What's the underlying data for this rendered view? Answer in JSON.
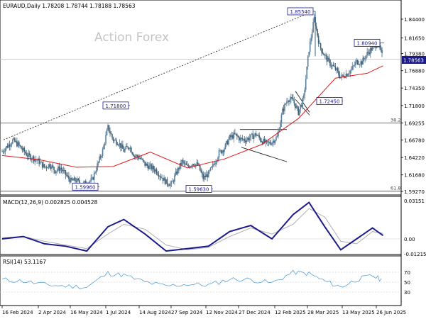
{
  "header": {
    "symbol_line": "EURAUD,Daily  1.78208 1.78744 1.78188 1.78563",
    "watermark": "Action Forex",
    "current_price": "1.78563"
  },
  "colors": {
    "background": "#ffffff",
    "bull_candle": "#5b7f9a",
    "bear_candle": "#3f6077",
    "moving_average": "#e0191b",
    "macd_line": "#1a1a8c",
    "signal_line": "#b0b0b0",
    "rsi_line": "#5aa2d8",
    "annotation": "#1a1a8c",
    "price_tag": "#1a1a8c"
  },
  "chart_data": [
    {
      "type": "candlestick",
      "title": "EURAUD,Daily",
      "series": [
        {
          "name": "EURAUD price (approx. weekly path)",
          "x": [
            "2024-02-16",
            "2024-02-23",
            "2024-03-01",
            "2024-03-08",
            "2024-03-15",
            "2024-03-22",
            "2024-03-29",
            "2024-04-05",
            "2024-04-12",
            "2024-04-19",
            "2024-04-26",
            "2024-05-03",
            "2024-05-10",
            "2024-05-17",
            "2024-05-24",
            "2024-05-31",
            "2024-06-07",
            "2024-06-14",
            "2024-06-21",
            "2024-06-28",
            "2024-07-05",
            "2024-07-12",
            "2024-07-19",
            "2024-07-26",
            "2024-08-02",
            "2024-08-09",
            "2024-08-16",
            "2024-08-23",
            "2024-08-30",
            "2024-09-06",
            "2024-09-13",
            "2024-09-20",
            "2024-09-27",
            "2024-10-04",
            "2024-10-11",
            "2024-10-18",
            "2024-10-25",
            "2024-11-01",
            "2024-11-08",
            "2024-11-15",
            "2024-11-22",
            "2024-11-29",
            "2024-12-06",
            "2024-12-13",
            "2024-12-20",
            "2024-12-27",
            "2025-01-03",
            "2025-01-10",
            "2025-01-17",
            "2025-01-24",
            "2025-01-31",
            "2025-02-07",
            "2025-02-14",
            "2025-02-21",
            "2025-02-28",
            "2025-03-07",
            "2025-03-14",
            "2025-03-21",
            "2025-03-28",
            "2025-04-04",
            "2025-04-11",
            "2025-04-18",
            "2025-04-25",
            "2025-05-02",
            "2025-05-09",
            "2025-05-16",
            "2025-05-23",
            "2025-05-30",
            "2025-06-06",
            "2025-06-13",
            "2025-06-20",
            "2025-06-27",
            "2025-07-04"
          ],
          "values": [
            1.651,
            1.659,
            1.667,
            1.661,
            1.652,
            1.644,
            1.641,
            1.636,
            1.628,
            1.632,
            1.623,
            1.627,
            1.617,
            1.608,
            1.609,
            1.602,
            1.606,
            1.609,
            1.631,
            1.652,
            1.686,
            1.668,
            1.664,
            1.652,
            1.659,
            1.645,
            1.642,
            1.632,
            1.628,
            1.624,
            1.615,
            1.606,
            1.603,
            1.621,
            1.636,
            1.628,
            1.634,
            1.631,
            1.612,
            1.618,
            1.632,
            1.649,
            1.656,
            1.671,
            1.675,
            1.669,
            1.668,
            1.672,
            1.676,
            1.667,
            1.662,
            1.665,
            1.672,
            1.71,
            1.728,
            1.725,
            1.708,
            1.729,
            1.8,
            1.845,
            1.805,
            1.79,
            1.779,
            1.771,
            1.759,
            1.764,
            1.77,
            1.782,
            1.781,
            1.794,
            1.802,
            1.809,
            1.786
          ]
        },
        {
          "name": "Moving average",
          "x": [
            "2024-02-16",
            "2024-04-05",
            "2024-05-24",
            "2024-07-12",
            "2024-08-30",
            "2024-10-18",
            "2024-12-06",
            "2025-01-24",
            "2025-03-14",
            "2025-05-02",
            "2025-06-13",
            "2025-07-04"
          ],
          "values": [
            1.645,
            1.639,
            1.628,
            1.629,
            1.65,
            1.627,
            1.64,
            1.661,
            1.699,
            1.758,
            1.765,
            1.776
          ]
        }
      ],
      "y_ticks": [
        "1.84400",
        "1.81650",
        "1.79380",
        "1.76880",
        "1.74350",
        "1.71800",
        "1.69255",
        "1.66780",
        "1.64220",
        "1.61680",
        "1.59270"
      ],
      "ylim": [
        1.5927,
        1.8589
      ],
      "x_ticks": [
        "16 Feb 2024",
        "2 Apr 2024",
        "16 May 2024",
        "1 Jul 2024",
        "14 Aug 2024",
        "27 Sep 2024",
        "12 Nov 2024",
        "27 Dec 2024",
        "12 Feb 2025",
        "28 Mar 2025",
        "13 May 2025",
        "26 Jun 2025"
      ],
      "annotations": [
        "1.85540",
        "1.80940",
        "1.72450",
        "1.71800",
        "1.59960",
        "1.59630",
        "38.2",
        "61.8"
      ],
      "reference_lines": {
        "fib_38_2": 1.6926,
        "fib_61_8": 1.593,
        "current": 1.7856
      },
      "grid": false
    },
    {
      "type": "line",
      "title": "MACD(12,26,9) 0.002825 0.004528",
      "series": [
        {
          "name": "MACD",
          "x": [
            "2024-02-16",
            "2024-03-15",
            "2024-04-12",
            "2024-05-10",
            "2024-06-07",
            "2024-07-05",
            "2024-07-26",
            "2024-08-23",
            "2024-09-20",
            "2024-10-18",
            "2024-11-15",
            "2024-12-13",
            "2025-01-10",
            "2025-02-07",
            "2025-03-07",
            "2025-03-28",
            "2025-04-18",
            "2025-05-09",
            "2025-05-30",
            "2025-06-20",
            "2025-07-04"
          ],
          "values": [
            0.0,
            0.002,
            -0.004,
            -0.006,
            -0.01,
            0.01,
            0.016,
            0.004,
            -0.01,
            -0.008,
            -0.006,
            0.006,
            0.011,
            0.0,
            0.02,
            0.03,
            0.01,
            -0.009,
            0.0,
            0.009,
            0.0028
          ]
        },
        {
          "name": "Signal",
          "x": [
            "2024-02-16",
            "2024-03-15",
            "2024-04-12",
            "2024-05-10",
            "2024-06-07",
            "2024-07-05",
            "2024-07-26",
            "2024-08-23",
            "2024-09-20",
            "2024-10-18",
            "2024-11-15",
            "2024-12-13",
            "2025-01-10",
            "2025-02-07",
            "2025-03-07",
            "2025-03-28",
            "2025-04-18",
            "2025-05-09",
            "2025-05-30",
            "2025-06-20",
            "2025-07-04"
          ],
          "values": [
            0.001,
            0.002,
            -0.002,
            -0.005,
            -0.008,
            0.004,
            0.012,
            0.008,
            -0.005,
            -0.009,
            -0.007,
            0.002,
            0.009,
            0.004,
            0.012,
            0.025,
            0.018,
            -0.002,
            -0.004,
            0.006,
            0.0045
          ]
        }
      ],
      "y_ticks": [
        "0.03151",
        "0.00",
        "-0.012158"
      ],
      "ylim": [
        -0.0135,
        0.0325
      ],
      "grid": false
    },
    {
      "type": "line",
      "title": "RSI(14) 53.1167",
      "series": [
        {
          "name": "RSI",
          "x": [
            "2024-02-16",
            "2024-03-15",
            "2024-04-12",
            "2024-05-10",
            "2024-06-07",
            "2024-07-05",
            "2024-07-26",
            "2024-08-23",
            "2024-09-20",
            "2024-10-18",
            "2024-11-15",
            "2024-12-13",
            "2025-01-10",
            "2025-02-07",
            "2025-03-07",
            "2025-03-28",
            "2025-04-18",
            "2025-05-09",
            "2025-05-30",
            "2025-06-20",
            "2025-07-04"
          ],
          "values": [
            55,
            52,
            45,
            42,
            40,
            68,
            64,
            50,
            42,
            46,
            44,
            56,
            55,
            48,
            70,
            67,
            52,
            40,
            55,
            63,
            53.1
          ]
        }
      ],
      "y_ticks": [
        "70",
        "50",
        "30"
      ],
      "ylim": [
        0,
        100
      ],
      "grid": false
    }
  ]
}
